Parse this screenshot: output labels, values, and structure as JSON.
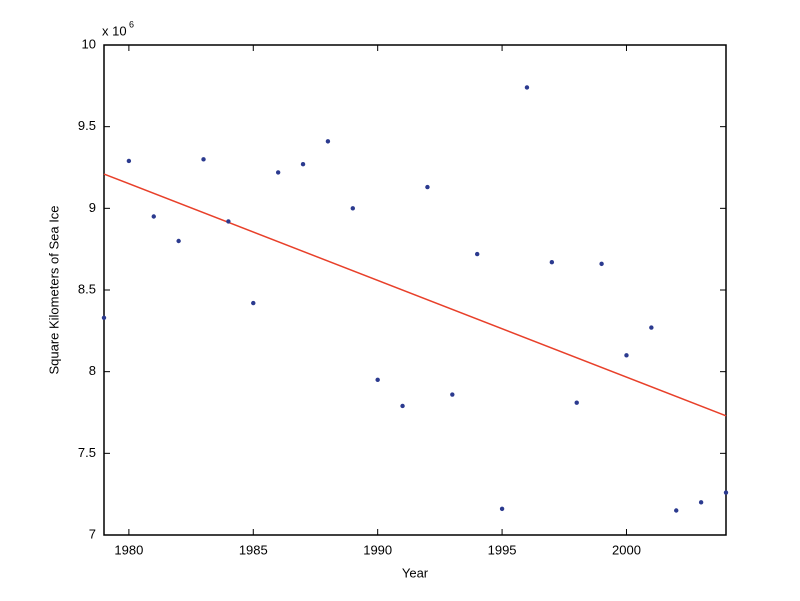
{
  "chart_data": {
    "type": "scatter",
    "x_label": "Year",
    "y_label": "Square Kilometers of Sea Ice",
    "y_multiplier": {
      "base": "x 10",
      "exponent": "6"
    },
    "x": [
      1979,
      1980,
      1981,
      1982,
      1983,
      1984,
      1985,
      1986,
      1987,
      1988,
      1989,
      1990,
      1991,
      1992,
      1993,
      1994,
      1995,
      1996,
      1997,
      1998,
      1999,
      2000,
      2001,
      2002,
      2003,
      2004
    ],
    "series": [
      {
        "color": "#2b3a8f",
        "values": [
          8.33,
          9.29,
          8.95,
          8.8,
          9.3,
          8.92,
          8.42,
          9.22,
          9.27,
          9.41,
          9.0,
          7.95,
          7.79,
          9.13,
          7.86,
          8.72,
          7.16,
          9.74,
          8.67,
          7.81,
          8.66,
          8.1,
          8.27,
          7.15,
          7.2,
          7.26
        ]
      }
    ],
    "fit": {
      "color": "#e8402a",
      "x": [
        1979,
        2004
      ],
      "values": [
        9.21,
        7.73
      ]
    },
    "xlim": [
      1979,
      2004
    ],
    "xticks": [
      1980,
      1985,
      1990,
      1995,
      2000
    ],
    "ylim": [
      7,
      10
    ],
    "yticks": [
      7,
      7.5,
      8,
      8.5,
      9,
      9.5,
      10
    ],
    "grid": false
  }
}
